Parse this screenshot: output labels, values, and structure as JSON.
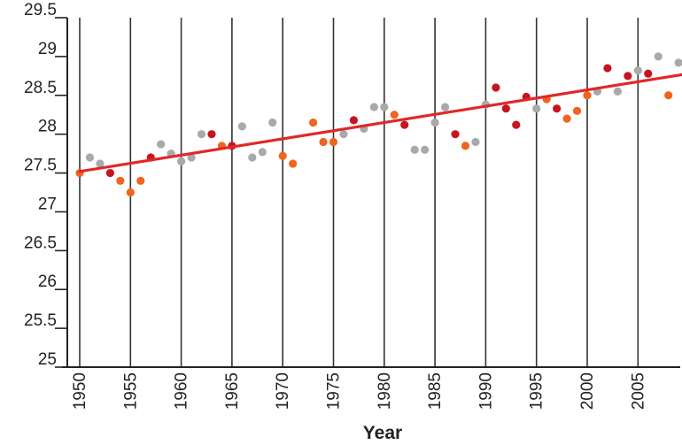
{
  "chart_data": {
    "type": "scatter",
    "title": "",
    "xlabel": "Year",
    "ylabel": "",
    "xlim": [
      1949.5,
      2009.5
    ],
    "ylim": [
      25,
      29.5
    ],
    "x_ticks": [
      1950,
      1955,
      1960,
      1965,
      1970,
      1975,
      1980,
      1985,
      1990,
      1995,
      2000,
      2005
    ],
    "y_ticks": [
      "25",
      "25.5",
      "26",
      "26.5",
      "27",
      "27.5",
      "28",
      "28.5",
      "29",
      "29.5"
    ],
    "grid": "vertical lines at each year tick",
    "colors": {
      "gray": "#a9a9a9",
      "orange": "#f0641e",
      "red": "#c8141e",
      "trend": "#e02828",
      "grid": "#333333"
    },
    "points": [
      {
        "x": 1950,
        "y": 27.5,
        "c": "orange"
      },
      {
        "x": 1951,
        "y": 27.7,
        "c": "gray"
      },
      {
        "x": 1952,
        "y": 27.62,
        "c": "gray"
      },
      {
        "x": 1953,
        "y": 27.5,
        "c": "red"
      },
      {
        "x": 1954,
        "y": 27.4,
        "c": "orange"
      },
      {
        "x": 1955,
        "y": 27.25,
        "c": "orange"
      },
      {
        "x": 1956,
        "y": 27.4,
        "c": "orange"
      },
      {
        "x": 1957,
        "y": 27.7,
        "c": "red"
      },
      {
        "x": 1958,
        "y": 27.87,
        "c": "gray"
      },
      {
        "x": 1959,
        "y": 27.75,
        "c": "gray"
      },
      {
        "x": 1960,
        "y": 27.65,
        "c": "gray"
      },
      {
        "x": 1961,
        "y": 27.7,
        "c": "gray"
      },
      {
        "x": 1962,
        "y": 28.0,
        "c": "gray"
      },
      {
        "x": 1963,
        "y": 28.0,
        "c": "red"
      },
      {
        "x": 1964,
        "y": 27.85,
        "c": "orange"
      },
      {
        "x": 1965,
        "y": 27.85,
        "c": "red"
      },
      {
        "x": 1966,
        "y": 28.1,
        "c": "gray"
      },
      {
        "x": 1967,
        "y": 27.7,
        "c": "gray"
      },
      {
        "x": 1968,
        "y": 27.77,
        "c": "gray"
      },
      {
        "x": 1969,
        "y": 28.15,
        "c": "gray"
      },
      {
        "x": 1970,
        "y": 27.72,
        "c": "orange"
      },
      {
        "x": 1971,
        "y": 27.62,
        "c": "orange"
      },
      {
        "x": 1973,
        "y": 28.15,
        "c": "orange"
      },
      {
        "x": 1974,
        "y": 27.9,
        "c": "orange"
      },
      {
        "x": 1975,
        "y": 27.9,
        "c": "orange"
      },
      {
        "x": 1976,
        "y": 28.0,
        "c": "gray"
      },
      {
        "x": 1977,
        "y": 28.18,
        "c": "red"
      },
      {
        "x": 1978,
        "y": 28.07,
        "c": "gray"
      },
      {
        "x": 1979,
        "y": 28.35,
        "c": "gray"
      },
      {
        "x": 1980,
        "y": 28.35,
        "c": "gray"
      },
      {
        "x": 1981,
        "y": 28.25,
        "c": "orange"
      },
      {
        "x": 1982,
        "y": 28.12,
        "c": "red"
      },
      {
        "x": 1983,
        "y": 27.8,
        "c": "gray"
      },
      {
        "x": 1984,
        "y": 27.8,
        "c": "gray"
      },
      {
        "x": 1985,
        "y": 28.15,
        "c": "gray"
      },
      {
        "x": 1986,
        "y": 28.35,
        "c": "gray"
      },
      {
        "x": 1987,
        "y": 28.0,
        "c": "red"
      },
      {
        "x": 1988,
        "y": 27.85,
        "c": "orange"
      },
      {
        "x": 1989,
        "y": 27.9,
        "c": "gray"
      },
      {
        "x": 1990,
        "y": 28.38,
        "c": "gray"
      },
      {
        "x": 1991,
        "y": 28.6,
        "c": "red"
      },
      {
        "x": 1992,
        "y": 28.33,
        "c": "red"
      },
      {
        "x": 1993,
        "y": 28.12,
        "c": "red"
      },
      {
        "x": 1994,
        "y": 28.48,
        "c": "red"
      },
      {
        "x": 1995,
        "y": 28.33,
        "c": "gray"
      },
      {
        "x": 1996,
        "y": 28.45,
        "c": "orange"
      },
      {
        "x": 1997,
        "y": 28.33,
        "c": "red"
      },
      {
        "x": 1998,
        "y": 28.2,
        "c": "orange"
      },
      {
        "x": 1999,
        "y": 28.3,
        "c": "orange"
      },
      {
        "x": 2000,
        "y": 28.5,
        "c": "orange"
      },
      {
        "x": 2001,
        "y": 28.55,
        "c": "gray"
      },
      {
        "x": 2002,
        "y": 28.85,
        "c": "red"
      },
      {
        "x": 2003,
        "y": 28.55,
        "c": "gray"
      },
      {
        "x": 2004,
        "y": 28.75,
        "c": "red"
      },
      {
        "x": 2005,
        "y": 28.82,
        "c": "gray"
      },
      {
        "x": 2006,
        "y": 28.78,
        "c": "red"
      },
      {
        "x": 2007,
        "y": 29.0,
        "c": "gray"
      },
      {
        "x": 2008,
        "y": 28.5,
        "c": "orange"
      },
      {
        "x": 2009,
        "y": 28.92,
        "c": "gray"
      }
    ],
    "trend": {
      "x": [
        1950,
        2010
      ],
      "y": [
        27.52,
        28.78
      ]
    }
  }
}
